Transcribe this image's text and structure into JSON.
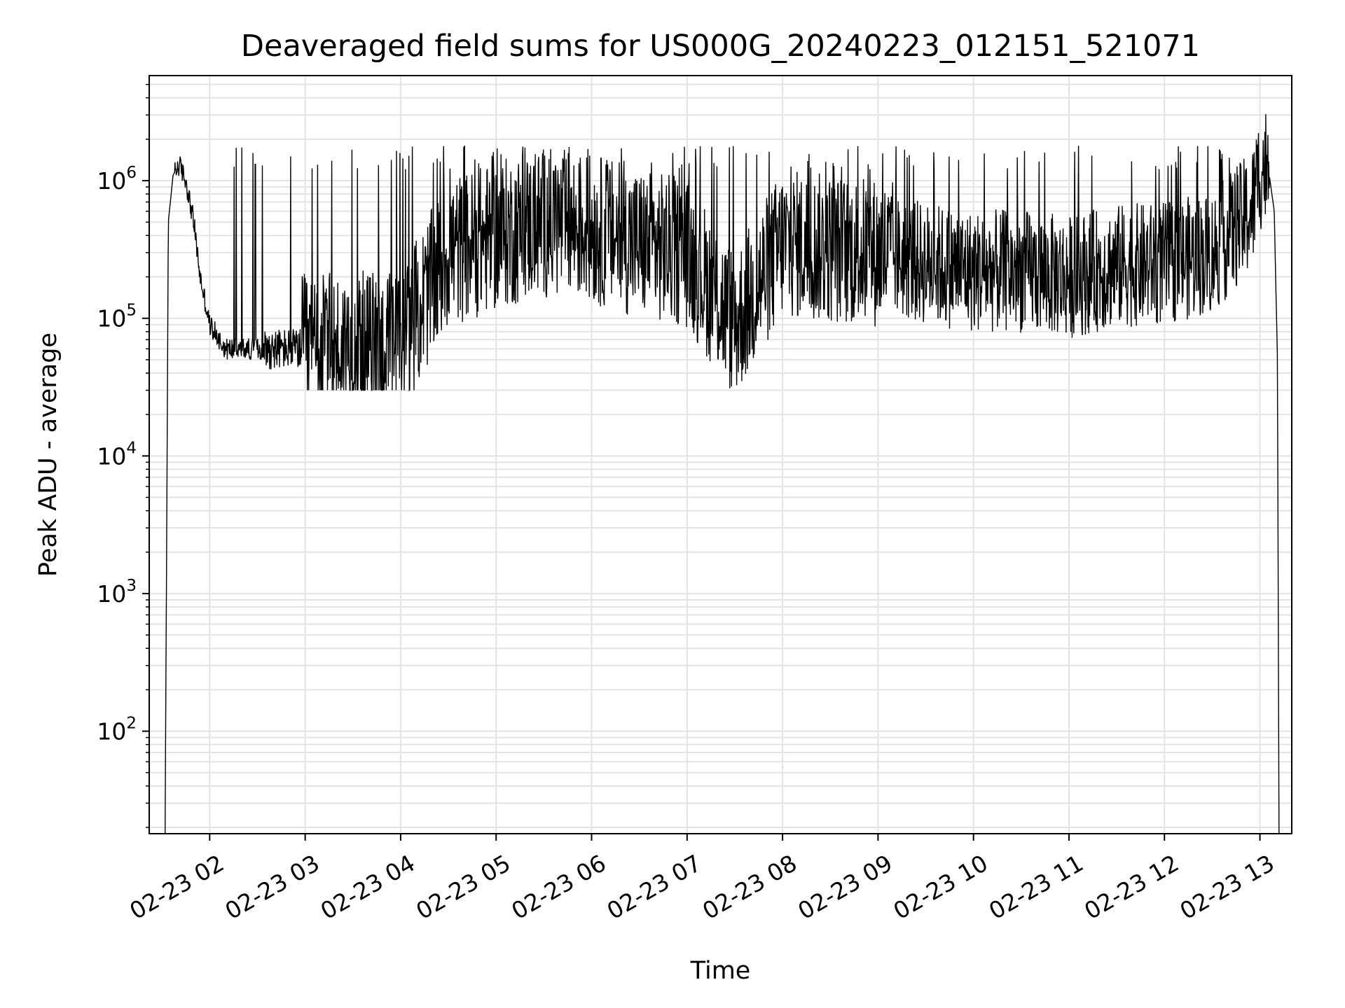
{
  "chart_data": {
    "type": "line",
    "title": "Deaveraged field sums for US000G_20240223_012151_521071",
    "xlabel": "Time",
    "ylabel": "Peak ADU - average",
    "yscale": "log",
    "grid": true,
    "line_color": "#000000",
    "grid_color": "#e3e3e3",
    "x_tick_labels": [
      "02-23 02",
      "02-23 03",
      "02-23 04",
      "02-23 05",
      "02-23 06",
      "02-23 07",
      "02-23 08",
      "02-23 09",
      "02-23 10",
      "02-23 11",
      "02-23 12",
      "02-23 13"
    ],
    "x_tick_values": [
      "2024-02-23 02:00",
      "2024-02-23 03:00",
      "2024-02-23 04:00",
      "2024-02-23 05:00",
      "2024-02-23 06:00",
      "2024-02-23 07:00",
      "2024-02-23 08:00",
      "2024-02-23 09:00",
      "2024-02-23 10:00",
      "2024-02-23 11:00",
      "2024-02-23 12:00",
      "2024-02-23 13:00"
    ],
    "xlim": [
      "2024-02-23 01:22",
      "2024-02-23 13:20"
    ],
    "y_tick_values": [
      100,
      1000,
      10000,
      100000,
      1000000
    ],
    "y_tick_labels": [
      {
        "base": "10",
        "exp": "2"
      },
      {
        "base": "10",
        "exp": "3"
      },
      {
        "base": "10",
        "exp": "4"
      },
      {
        "base": "10",
        "exp": "5"
      },
      {
        "base": "10",
        "exp": "6"
      }
    ],
    "ylim": [
      18,
      5800000
    ],
    "series": [
      {
        "x": [
          "2024-02-23 01:32",
          "2024-02-23 01:34",
          "2024-02-23 01:37",
          "2024-02-23 01:41",
          "2024-02-23 01:45",
          "2024-02-23 01:50",
          "2024-02-23 01:54",
          "2024-02-23 02:00",
          "2024-02-23 02:10",
          "2024-02-23 02:30",
          "2024-02-23 03:00",
          "2024-02-23 03:30",
          "2024-02-23 04:00",
          "2024-02-23 04:30",
          "2024-02-23 05:00",
          "2024-02-23 05:30",
          "2024-02-23 06:00",
          "2024-02-23 06:30",
          "2024-02-23 07:00",
          "2024-02-23 07:30",
          "2024-02-23 08:00",
          "2024-02-23 08:30",
          "2024-02-23 09:00",
          "2024-02-23 09:30",
          "2024-02-23 10:00",
          "2024-02-23 10:30",
          "2024-02-23 11:00",
          "2024-02-23 11:30",
          "2024-02-23 12:00",
          "2024-02-23 12:30",
          "2024-02-23 12:55",
          "2024-02-23 13:00",
          "2024-02-23 13:05",
          "2024-02-23 13:09",
          "2024-02-23 13:11",
          "2024-02-23 13:12"
        ],
        "y": [
          18,
          500000,
          1100000,
          1300000,
          1000000,
          500000,
          200000,
          90000,
          60000,
          60000,
          60000,
          62000,
          65000,
          300000,
          400000,
          500000,
          450000,
          350000,
          300000,
          90000,
          350000,
          320000,
          300000,
          250000,
          220000,
          220000,
          200000,
          240000,
          250000,
          300000,
          600000,
          1200000,
          1300000,
          600000,
          50000,
          18
        ]
      }
    ]
  }
}
